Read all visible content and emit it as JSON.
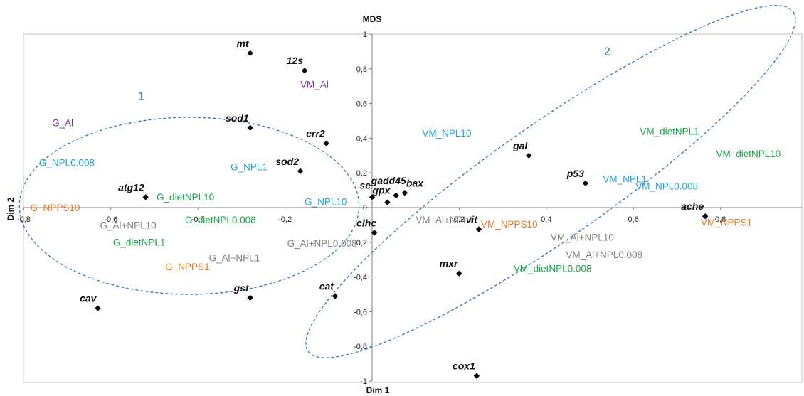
{
  "chart_data": {
    "type": "scatter",
    "title": "MDS",
    "xlabel": "Dim 1",
    "ylabel": "Dim 2",
    "xlim": [
      -0.8,
      0.9
    ],
    "ylim": [
      -1,
      1
    ],
    "xticks": [
      "-0,8",
      "-0,6",
      "-0,4",
      "-0,2",
      "0",
      "0,2",
      "0,4",
      "0,6",
      "0,8"
    ],
    "yticks": [
      "-1",
      "-0,8",
      "-0,6",
      "-0,4",
      "-0,2",
      "0",
      "0,2",
      "0,4",
      "0,6",
      "0,8",
      "1"
    ],
    "grid": false,
    "groups": [
      {
        "name": "1",
        "color": "#2e75b6",
        "center": [
          -0.42,
          0.01
        ],
        "radii": [
          0.39,
          0.51
        ],
        "angle": 0,
        "label_at": [
          -0.53,
          0.62
        ]
      },
      {
        "name": "2",
        "color": "#2e75b6",
        "center": [
          0.41,
          0.15
        ],
        "radii": [
          0.68,
          0.33
        ],
        "angle": -35,
        "label_at": [
          0.54,
          0.88
        ]
      }
    ],
    "genes": [
      {
        "label": "mt",
        "x": -0.28,
        "y": 0.89
      },
      {
        "label": "12s",
        "x": -0.155,
        "y": 0.79
      },
      {
        "label": "sod1",
        "x": -0.28,
        "y": 0.46
      },
      {
        "label": "err2",
        "x": -0.105,
        "y": 0.37
      },
      {
        "label": "sod2",
        "x": -0.165,
        "y": 0.21
      },
      {
        "label": "atg12",
        "x": -0.52,
        "y": 0.06
      },
      {
        "label": "gadd45",
        "x": 0.055,
        "y": 0.07
      },
      {
        "label": "bax",
        "x": 0.075,
        "y": 0.085
      },
      {
        "label": "se",
        "x": 0.0,
        "y": 0.06
      },
      {
        "label": "gpx",
        "x": 0.035,
        "y": 0.03
      },
      {
        "label": "gal",
        "x": 0.36,
        "y": 0.3
      },
      {
        "label": "p53",
        "x": 0.49,
        "y": 0.14
      },
      {
        "label": "ache",
        "x": 0.765,
        "y": -0.05
      },
      {
        "label": "vit",
        "x": 0.245,
        "y": -0.125
      },
      {
        "label": "clhc",
        "x": 0.005,
        "y": -0.145
      },
      {
        "label": "mxr",
        "x": 0.2,
        "y": -0.38
      },
      {
        "label": "cav",
        "x": -0.63,
        "y": -0.58
      },
      {
        "label": "gst",
        "x": -0.28,
        "y": -0.52
      },
      {
        "label": "cat",
        "x": -0.085,
        "y": -0.51
      },
      {
        "label": "cox1",
        "x": 0.24,
        "y": -0.97
      }
    ],
    "treatments": [
      {
        "label": "VM_Al",
        "x": -0.165,
        "y": 0.69,
        "color": "#7030a0"
      },
      {
        "label": "G_Al",
        "x": -0.735,
        "y": 0.47,
        "color": "#7030a0"
      },
      {
        "label": "G_NPL0.008",
        "x": -0.765,
        "y": 0.24,
        "color": "#1fa3dc"
      },
      {
        "label": "G_NPL1",
        "x": -0.325,
        "y": 0.215,
        "color": "#1fa3dc"
      },
      {
        "label": "G_NPL10",
        "x": -0.155,
        "y": 0.015,
        "color": "#1fa3dc"
      },
      {
        "label": "VM_NPL10",
        "x": 0.115,
        "y": 0.41,
        "color": "#1fa3dc"
      },
      {
        "label": "VM_NPL1",
        "x": 0.53,
        "y": 0.145,
        "color": "#1fa3dc"
      },
      {
        "label": "VM_NPL0.008",
        "x": 0.605,
        "y": 0.105,
        "color": "#1fa3dc"
      },
      {
        "label": "VM_dietNPL1",
        "x": 0.615,
        "y": 0.42,
        "color": "#19a34a"
      },
      {
        "label": "VM_dietNPL10",
        "x": 0.79,
        "y": 0.29,
        "color": "#19a34a"
      },
      {
        "label": "G_dietNPL10",
        "x": -0.495,
        "y": 0.04,
        "color": "#19a34a"
      },
      {
        "label": "G_dietNPL0.008",
        "x": -0.43,
        "y": -0.09,
        "color": "#19a34a"
      },
      {
        "label": "G_dietNPL1",
        "x": -0.595,
        "y": -0.22,
        "color": "#19a34a"
      },
      {
        "label": "VM_dietNPL0.008",
        "x": 0.325,
        "y": -0.37,
        "color": "#19a34a"
      },
      {
        "label": "G_NPPS10",
        "x": -0.785,
        "y": -0.02,
        "color": "#e07b26"
      },
      {
        "label": "G_NPPS1",
        "x": -0.475,
        "y": -0.36,
        "color": "#e07b26"
      },
      {
        "label": "VM_NPPS10",
        "x": 0.25,
        "y": -0.115,
        "color": "#e07b26"
      },
      {
        "label": "VM_NPPS1",
        "x": 0.755,
        "y": -0.105,
        "color": "#e07b26"
      },
      {
        "label": "G_Al+NPL10",
        "x": -0.625,
        "y": -0.12,
        "color": "#808080"
      },
      {
        "label": "G_Al+NPL0.008",
        "x": -0.195,
        "y": -0.225,
        "color": "#808080"
      },
      {
        "label": "G_Al+NPL1",
        "x": -0.375,
        "y": -0.31,
        "color": "#808080"
      },
      {
        "label": "VM_Al+NPL1",
        "x": 0.1,
        "y": -0.09,
        "color": "#808080"
      },
      {
        "label": "VM_Al+NPL10",
        "x": 0.41,
        "y": -0.19,
        "color": "#808080"
      },
      {
        "label": "VM_Al+NPL0.008",
        "x": 0.445,
        "y": -0.29,
        "color": "#808080"
      }
    ]
  }
}
